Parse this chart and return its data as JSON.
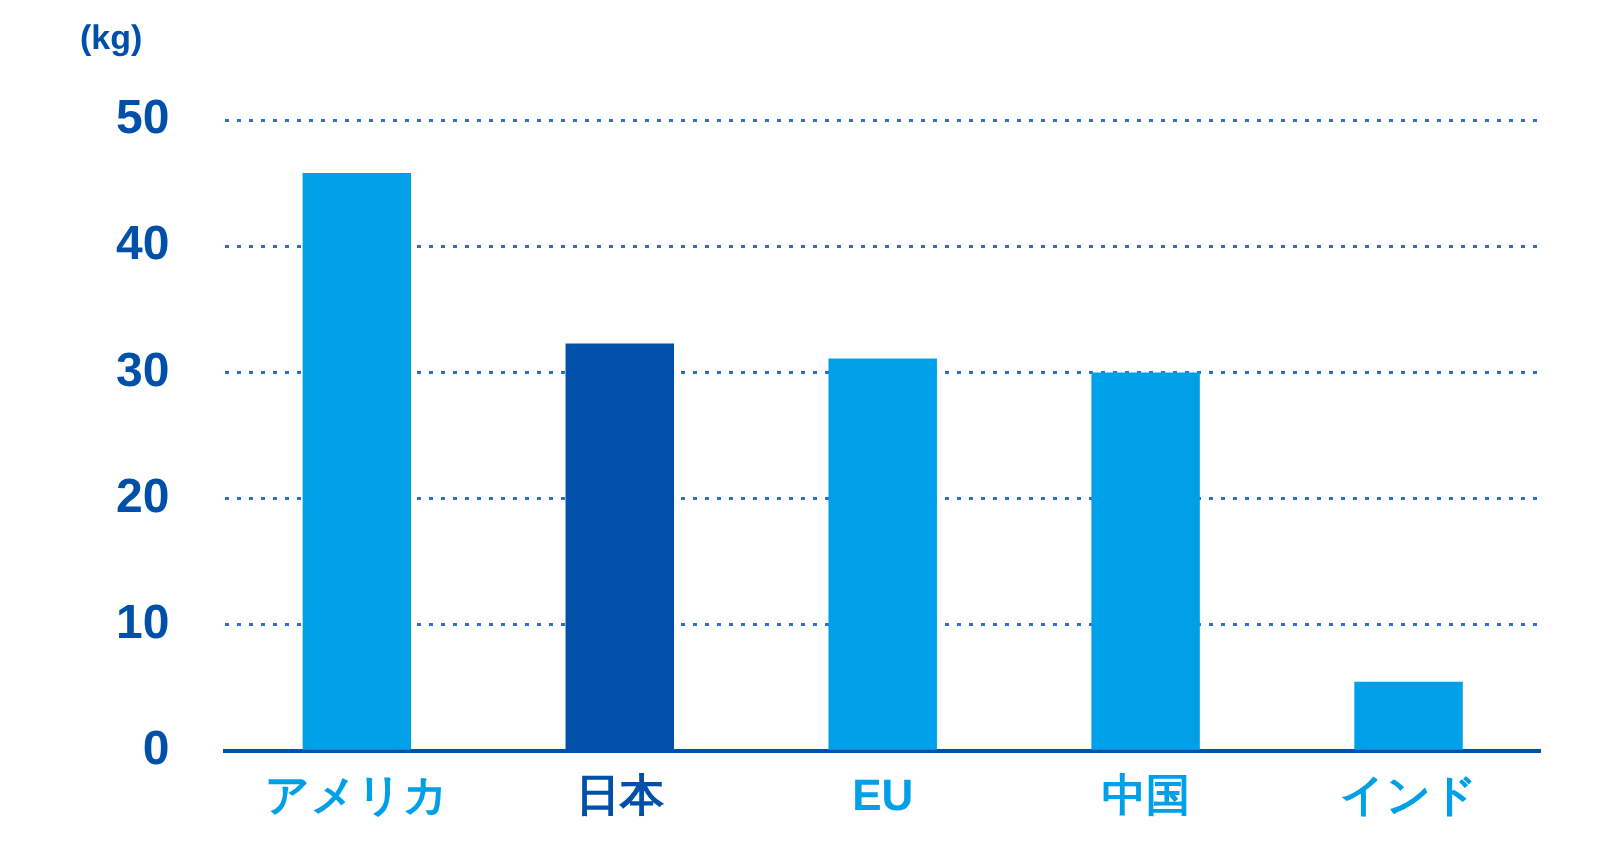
{
  "chart_data": {
    "type": "bar",
    "ylabel": "(kg)",
    "categories": [
      "アメリカ",
      "日本",
      "EU",
      "中国",
      "インド"
    ],
    "values": [
      45.8,
      32.3,
      31.1,
      30.0,
      5.5
    ],
    "colors": [
      "#00a0e9",
      "#0050aa",
      "#00a0e9",
      "#00a0e9",
      "#00a0e9"
    ],
    "ylim": [
      0,
      50
    ],
    "yticks": [
      0,
      10,
      20,
      30,
      40,
      50
    ],
    "grid": "y",
    "legend": false
  }
}
